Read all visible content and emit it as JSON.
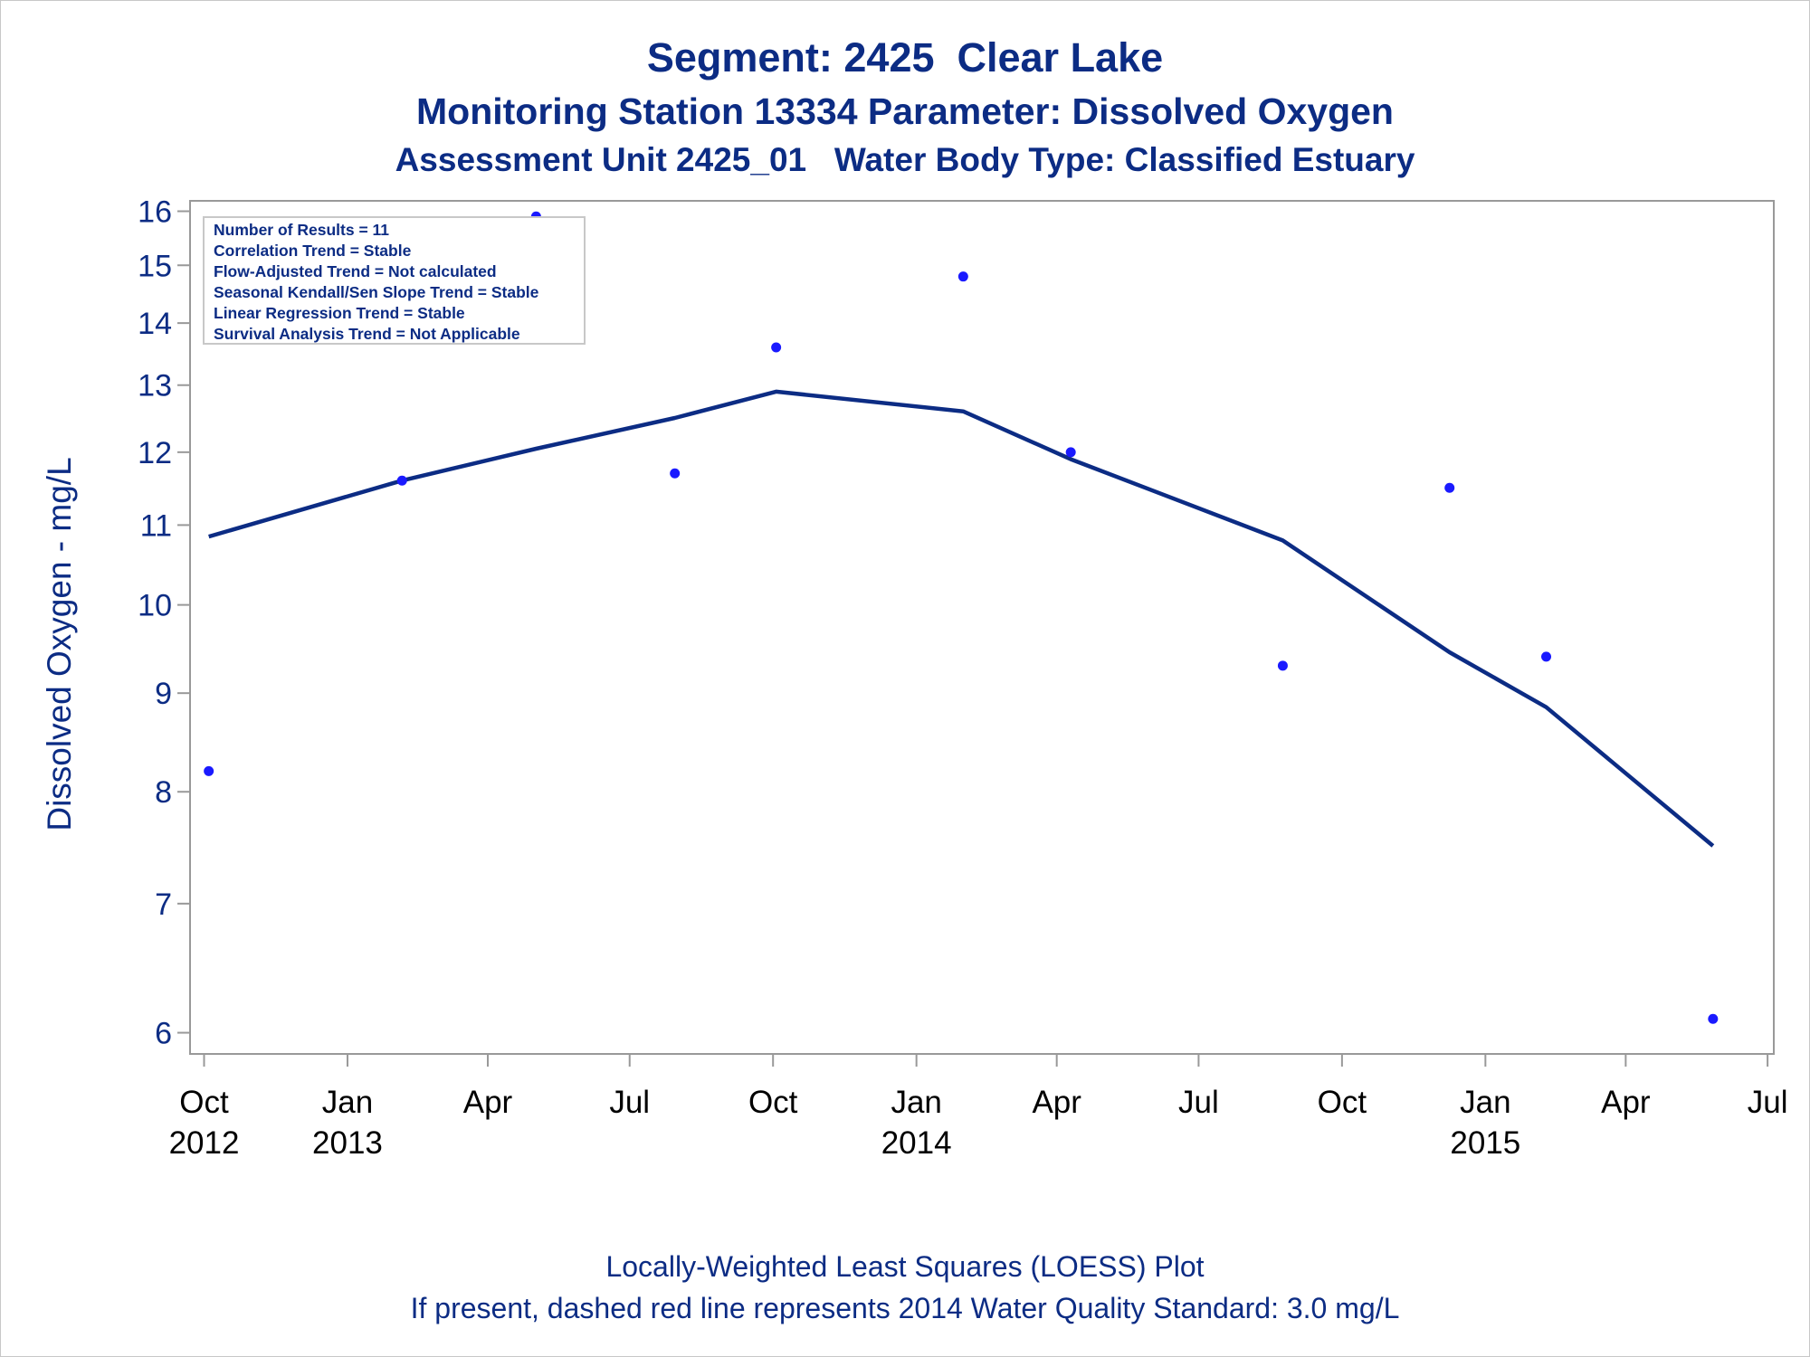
{
  "titles": {
    "line1": "Segment: 2425  Clear Lake",
    "line2": "Monitoring Station 13334 Parameter: Dissolved Oxygen",
    "line3": "Assessment Unit 2425_01   Water Body Type: Classified Estuary"
  },
  "footnotes": {
    "line1": "Locally-Weighted Least Squares (LOESS) Plot",
    "line2": "If present, dashed red line represents 2014 Water Quality Standard: 3.0 mg/L"
  },
  "inset": {
    "lines": [
      "Number of Results = 11",
      "Correlation Trend = Stable",
      "Flow-Adjusted Trend = Not calculated",
      "Seasonal Kendall/Sen Slope Trend = Stable",
      "Linear Regression Trend = Stable",
      "Survival Analysis Trend = Not Applicable"
    ]
  },
  "colors": {
    "text": "#0c2c84",
    "points": "#1a1aff",
    "loess": "#0c2c84",
    "axis": "#999999"
  },
  "chart_data": {
    "type": "scatter",
    "title": "Segment: 2425  Clear Lake",
    "ylabel": "Dissolved Oxygen - mg/L",
    "yscale": "log",
    "ylim": [
      5.85,
      16.2
    ],
    "yticks": [
      6,
      7,
      8,
      9,
      10,
      11,
      12,
      13,
      14,
      15,
      16
    ],
    "xlim": [
      "2012-09-22",
      "2015-07-05"
    ],
    "xticks": [
      {
        "date": "2012-10-01",
        "month": "Oct",
        "year": "2012"
      },
      {
        "date": "2013-01-01",
        "month": "Jan",
        "year": "2013"
      },
      {
        "date": "2013-04-01",
        "month": "Apr",
        "year": ""
      },
      {
        "date": "2013-07-01",
        "month": "Jul",
        "year": ""
      },
      {
        "date": "2013-10-01",
        "month": "Oct",
        "year": ""
      },
      {
        "date": "2014-01-01",
        "month": "Jan",
        "year": "2014"
      },
      {
        "date": "2014-04-01",
        "month": "Apr",
        "year": ""
      },
      {
        "date": "2014-07-01",
        "month": "Jul",
        "year": ""
      },
      {
        "date": "2014-10-01",
        "month": "Oct",
        "year": ""
      },
      {
        "date": "2015-01-01",
        "month": "Jan",
        "year": "2015"
      },
      {
        "date": "2015-04-01",
        "month": "Apr",
        "year": ""
      },
      {
        "date": "2015-07-01",
        "month": "Jul",
        "year": ""
      }
    ],
    "grid": false,
    "series": [
      {
        "type": "scatter",
        "points": [
          {
            "date": "2012-10-04",
            "value": 8.2
          },
          {
            "date": "2013-02-05",
            "value": 11.6
          },
          {
            "date": "2013-05-02",
            "value": 15.9
          },
          {
            "date": "2013-07-30",
            "value": 11.7
          },
          {
            "date": "2013-10-03",
            "value": 13.6
          },
          {
            "date": "2014-01-31",
            "value": 14.8
          },
          {
            "date": "2014-04-10",
            "value": 12.0
          },
          {
            "date": "2014-08-24",
            "value": 9.3
          },
          {
            "date": "2014-12-09",
            "value": 11.5
          },
          {
            "date": "2015-02-09",
            "value": 9.4
          },
          {
            "date": "2015-05-27",
            "value": 6.1
          }
        ]
      },
      {
        "type": "line",
        "points": [
          {
            "date": "2012-10-04",
            "value": 10.85
          },
          {
            "date": "2013-02-05",
            "value": 11.6
          },
          {
            "date": "2013-05-02",
            "value": 12.05
          },
          {
            "date": "2013-07-30",
            "value": 12.5
          },
          {
            "date": "2013-10-03",
            "value": 12.9
          },
          {
            "date": "2014-01-31",
            "value": 12.6
          },
          {
            "date": "2014-04-10",
            "value": 11.9
          },
          {
            "date": "2014-08-24",
            "value": 10.8
          },
          {
            "date": "2014-12-09",
            "value": 9.45
          },
          {
            "date": "2015-02-09",
            "value": 8.85
          },
          {
            "date": "2015-05-27",
            "value": 7.5
          }
        ]
      }
    ]
  }
}
